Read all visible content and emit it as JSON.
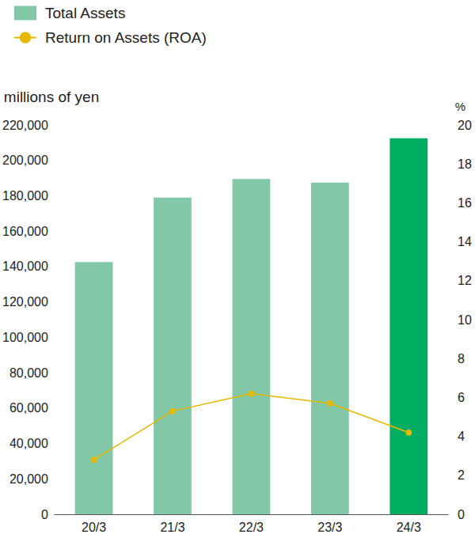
{
  "chart_data": {
    "type": "bar",
    "y_label": "millions of yen",
    "y2_label": "%",
    "categories": [
      "20/3",
      "21/3",
      "22/3",
      "23/3",
      "24/3"
    ],
    "series": [
      {
        "name": "Total Assets",
        "type": "bar",
        "colors": [
          "#82c8a8",
          "#82c8a8",
          "#82c8a8",
          "#82c8a8",
          "#00ae62"
        ],
        "values": [
          142500,
          179000,
          189500,
          187500,
          212500
        ]
      },
      {
        "name": "Return on Assets (ROA)",
        "type": "line",
        "axis": "y2",
        "color": "#e6b800",
        "marker": "circle",
        "values": [
          2.8,
          5.3,
          6.2,
          5.7,
          4.2
        ]
      }
    ],
    "ylim": [
      0,
      220000
    ],
    "yticks": [
      0,
      {
        "value": 20000,
        "label": "20,000"
      },
      {
        "value": 40000,
        "label": "40,000"
      },
      {
        "value": 60000,
        "label": "60,000"
      },
      {
        "value": 80000,
        "label": "80,000"
      },
      {
        "value": 100000,
        "label": "100,000"
      },
      {
        "value": 120000,
        "label": "120,000"
      },
      {
        "value": 140000,
        "label": "140,000"
      },
      {
        "value": 160000,
        "label": "160,000"
      },
      {
        "value": 180000,
        "label": "180,000"
      },
      {
        "value": 200000,
        "label": "200,000"
      },
      {
        "value": 220000,
        "label": "220,000"
      }
    ],
    "y2lim": [
      0,
      20
    ],
    "y2ticks": [
      0,
      2,
      4,
      6,
      8,
      10,
      12,
      14,
      16,
      18,
      20
    ],
    "grid": false,
    "legend": "top-left"
  }
}
